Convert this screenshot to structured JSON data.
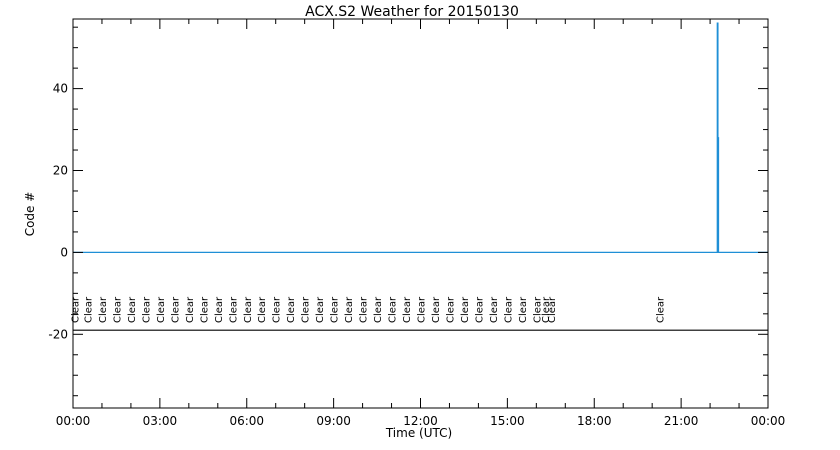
{
  "chart_data": {
    "type": "line",
    "title": "ACX.S2 Weather for 20150130",
    "xlabel": "Time (UTC)",
    "ylabel": "Code #",
    "xlim": [
      0,
      24
    ],
    "ylim": [
      -38,
      57
    ],
    "xticks": [
      0,
      3,
      6,
      9,
      12,
      15,
      18,
      21,
      24
    ],
    "xtick_labels": [
      "00:00",
      "03:00",
      "06:00",
      "09:00",
      "12:00",
      "15:00",
      "18:00",
      "21:00",
      "00:00"
    ],
    "yticks": [
      -20,
      0,
      20,
      40
    ],
    "ytick_labels": [
      "-20",
      "0",
      "20",
      "40"
    ],
    "grid": false,
    "line_color": "#1f8fd6",
    "series": [
      {
        "x": [
          0,
          22.25,
          22.25,
          22.27,
          22.27,
          22.27,
          22.29,
          22.29,
          24
        ],
        "y": [
          0,
          0,
          56,
          56,
          0,
          28,
          28,
          0,
          0
        ]
      }
    ],
    "reference_line": {
      "y": -19,
      "color": "#000000"
    },
    "weather_labels": [
      {
        "x": 0.05,
        "text": "Clear"
      },
      {
        "x": 0.5,
        "text": "Clear"
      },
      {
        "x": 1.0,
        "text": "Clear"
      },
      {
        "x": 1.5,
        "text": "Clear"
      },
      {
        "x": 2.0,
        "text": "Clear"
      },
      {
        "x": 2.5,
        "text": "Clear"
      },
      {
        "x": 3.0,
        "text": "Clear"
      },
      {
        "x": 3.5,
        "text": "Clear"
      },
      {
        "x": 4.0,
        "text": "Clear"
      },
      {
        "x": 4.5,
        "text": "Clear"
      },
      {
        "x": 5.0,
        "text": "Clear"
      },
      {
        "x": 5.5,
        "text": "Clear"
      },
      {
        "x": 6.0,
        "text": "Clear"
      },
      {
        "x": 6.5,
        "text": "Clear"
      },
      {
        "x": 7.0,
        "text": "Clear"
      },
      {
        "x": 7.5,
        "text": "Clear"
      },
      {
        "x": 8.0,
        "text": "Clear"
      },
      {
        "x": 8.5,
        "text": "Clear"
      },
      {
        "x": 9.0,
        "text": "Clear"
      },
      {
        "x": 9.5,
        "text": "Clear"
      },
      {
        "x": 10.0,
        "text": "Clear"
      },
      {
        "x": 10.5,
        "text": "Clear"
      },
      {
        "x": 11.0,
        "text": "Clear"
      },
      {
        "x": 11.5,
        "text": "Clear"
      },
      {
        "x": 12.0,
        "text": "Clear"
      },
      {
        "x": 12.5,
        "text": "Clear"
      },
      {
        "x": 13.0,
        "text": "Clear"
      },
      {
        "x": 13.5,
        "text": "Clear"
      },
      {
        "x": 14.0,
        "text": "Clear"
      },
      {
        "x": 14.5,
        "text": "Clear"
      },
      {
        "x": 15.0,
        "text": "Clear"
      },
      {
        "x": 15.5,
        "text": "Clear"
      },
      {
        "x": 16.0,
        "text": "Clear"
      },
      {
        "x": 16.3,
        "text": "Clear"
      },
      {
        "x": 16.5,
        "text": "Clear"
      },
      {
        "x": 20.25,
        "text": "Clear"
      }
    ]
  }
}
